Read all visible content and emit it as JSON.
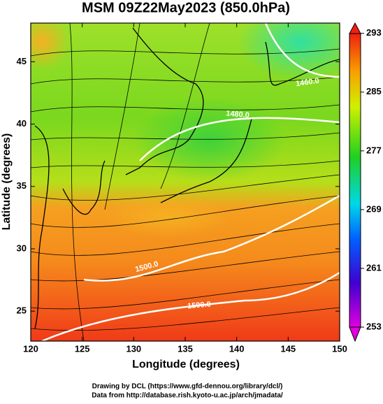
{
  "chart_data": {
    "type": "heatmap",
    "title": "MSM 09Z22May2023 (850.0hPa)",
    "x_label": "Longitude (degrees)",
    "y_label": "Latitude  (degrees)",
    "xlim": [
      120,
      150
    ],
    "ylim": [
      22.6,
      48.1
    ],
    "xticks": [
      120,
      125,
      130,
      135,
      140,
      145,
      150
    ],
    "yticks": [
      25,
      30,
      35,
      40,
      45
    ],
    "colorbar": {
      "lim": [
        251.1,
        294.4
      ],
      "ticks": [
        253,
        261,
        269,
        277,
        285,
        293
      ]
    },
    "contour_labels": [
      "1460.0",
      "1480.0",
      "1500.0",
      "1500.0"
    ]
  },
  "footer": {
    "lines": [
      "Drawing by DCL (https://www.gfd-dennou.org/library/dcl/)",
      "Data from http://database.rish.kyoto-u.ac.jp/arch/jmadata/"
    ]
  }
}
